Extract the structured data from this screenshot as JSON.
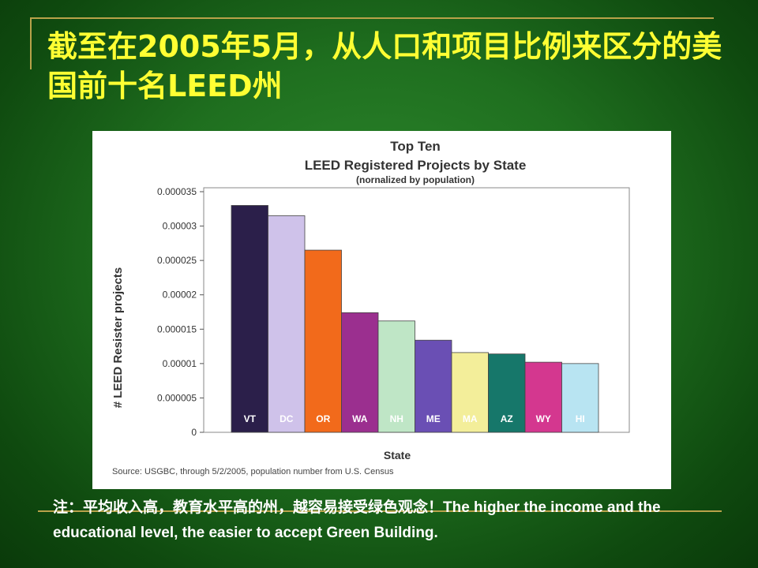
{
  "slide": {
    "title": "截至在2005年5月，从人口和项目比例来区分的美国前十名LEED州",
    "caption": "注：平均收入高，教育水平高的州，越容易接受绿色观念！The higher the income and the educational level, the easier to accept Green Building."
  },
  "colors": {
    "title": "#ffff33",
    "background": "#1f6f1f",
    "accent": "#b8a24a"
  },
  "chart_data": {
    "type": "bar",
    "title": "Top Ten",
    "subtitle": "LEED Registered Projects by State",
    "note": "(nornalized by population)",
    "xlabel": "State",
    "ylabel": "# LEED Resister projects",
    "source": "Source: USGBC, through 5/2/2005, population number from U.S. Census",
    "categories": [
      "VT",
      "DC",
      "OR",
      "WA",
      "NH",
      "ME",
      "MA",
      "AZ",
      "WY",
      "HI"
    ],
    "values": [
      3.3e-05,
      3.15e-05,
      2.65e-05,
      1.74e-05,
      1.62e-05,
      1.34e-05,
      1.16e-05,
      1.14e-05,
      1.02e-05,
      1e-05
    ],
    "bar_colors": [
      "#2b1f4a",
      "#cfc2ea",
      "#f26a1b",
      "#9b2f8f",
      "#bfe6c6",
      "#6a4fb4",
      "#f3ee9a",
      "#16776a",
      "#d4378f",
      "#b8e4f2"
    ],
    "yticks": [
      "0.000035",
      "0.00003",
      "0.000025",
      "0.00002",
      "0.000015",
      "0.00001",
      "0.000005",
      "0"
    ],
    "ylim": [
      0,
      3.5e-05
    ],
    "grid": false,
    "legend": "none"
  }
}
